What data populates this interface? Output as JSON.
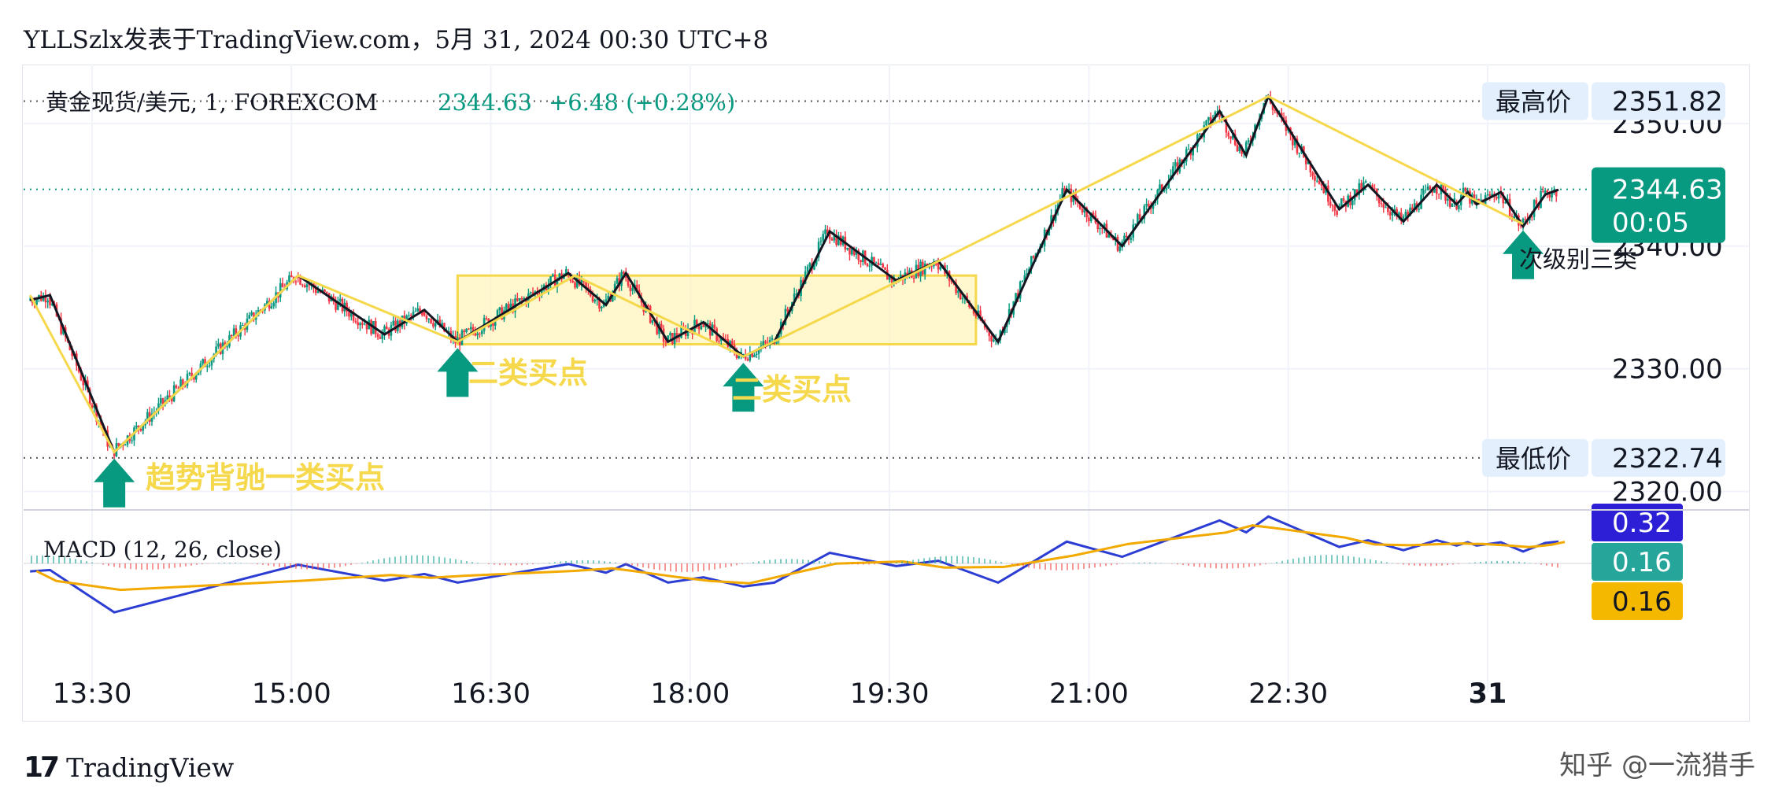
{
  "header": {
    "title": "YLLSzlx发表于TradingView.com，5月 31, 2024 00:30 UTC+8"
  },
  "footer": {
    "logo_text": "TradingView",
    "watermark": "知乎 @一流猎手"
  },
  "chart_data": {
    "type": "candlestick",
    "symbol_label": "黄金现货/美元, 1, FOREXCOM",
    "last_price": "2344.63",
    "change": "+6.48 (+0.28%)",
    "time_labels": [
      "13:30",
      "15:00",
      "16:30",
      "18:00",
      "19:30",
      "21:00",
      "22:30",
      "31"
    ],
    "price_ticks": [
      "2350.00",
      "2340.00",
      "2330.00",
      "2320.00"
    ],
    "ylim": [
      2318.5,
      2354.8
    ],
    "high_label": "最高价",
    "high_value": "2351.82",
    "low_label": "最低价",
    "low_value": "2322.74",
    "countdown": "00:05",
    "macd_label": "MACD (12, 26, close)",
    "macd_values": [
      "0.32",
      "0.16",
      "0.16"
    ],
    "annotations": [
      {
        "text": "趋势背驰一类买点",
        "type": "buy-arrow"
      },
      {
        "text": "二类买点",
        "type": "buy-arrow"
      },
      {
        "text": "二类买点",
        "type": "buy-arrow"
      },
      {
        "text": "次级别三类",
        "type": "buy-arrow"
      }
    ],
    "zigzag_black": [
      [
        "13:02",
        2335.6
      ],
      [
        "13:11",
        2336.0
      ],
      [
        "13:40",
        2323.2
      ],
      [
        "15:03",
        2337.6
      ],
      [
        "15:42",
        2332.8
      ],
      [
        "16:00",
        2334.8
      ],
      [
        "16:15",
        2332.2
      ],
      [
        "17:05",
        2337.8
      ],
      [
        "17:22",
        2335.2
      ],
      [
        "17:31",
        2337.8
      ],
      [
        "17:50",
        2332.2
      ],
      [
        "18:06",
        2333.8
      ],
      [
        "18:24",
        2331.0
      ],
      [
        "18:38",
        2332.2
      ],
      [
        "19:03",
        2341.2
      ],
      [
        "19:33",
        2337.2
      ],
      [
        "19:52",
        2338.8
      ],
      [
        "20:19",
        2332.2
      ],
      [
        "20:50",
        2344.6
      ],
      [
        "21:15",
        2340.0
      ],
      [
        "21:59",
        2351.0
      ],
      [
        "22:11",
        2347.4
      ],
      [
        "22:21",
        2352.2
      ],
      [
        "22:53",
        2343.0
      ],
      [
        "23:06",
        2345.0
      ],
      [
        "23:22",
        2342.0
      ],
      [
        "23:37",
        2345.0
      ],
      [
        "23:46",
        2343.4
      ],
      [
        "23:51",
        2344.4
      ],
      [
        "23:55",
        2343.4
      ],
      [
        "24:06",
        2344.4
      ],
      [
        "24:16",
        2341.6
      ],
      [
        "24:26",
        2344.2
      ],
      [
        "24:32",
        2344.6
      ]
    ],
    "zigzag_yellow": [
      [
        "13:02",
        2336.0
      ],
      [
        "13:40",
        2323.2
      ],
      [
        "15:03",
        2337.6
      ],
      [
        "16:15",
        2332.2
      ],
      [
        "17:08",
        2337.6
      ],
      [
        "18:24",
        2331.0
      ],
      [
        "19:39",
        2337.6
      ],
      [
        "22:21",
        2352.2
      ],
      [
        "24:16",
        2341.8
      ]
    ],
    "pivot_zone": {
      "time_range": [
        "16:15",
        "20:09"
      ],
      "price_range": [
        2332.0,
        2337.6
      ]
    }
  }
}
